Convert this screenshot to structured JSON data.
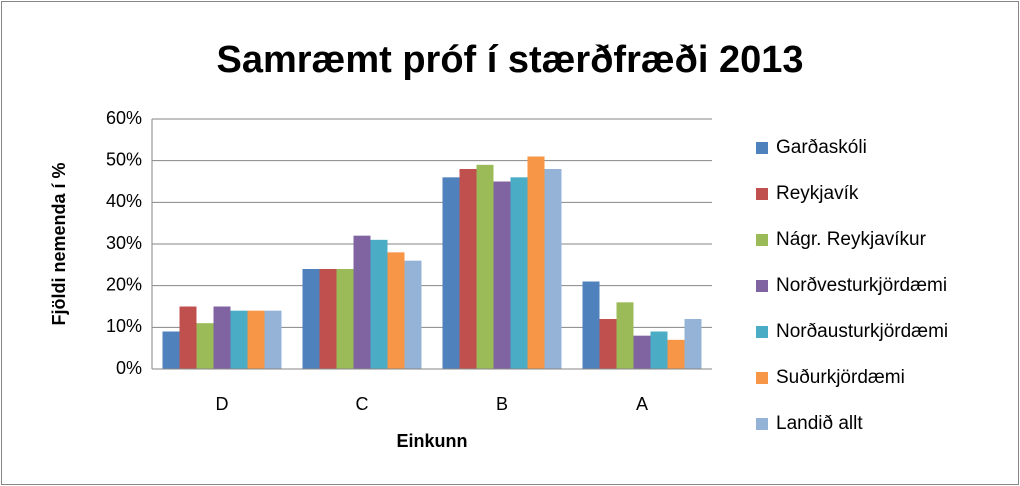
{
  "chart_data": {
    "type": "bar",
    "title": "Samræmt próf í stærðfræði 2013",
    "x_label": "Einkunn",
    "y_label": "Fjöldi nemenda í %",
    "categories": [
      "D",
      "C",
      "B",
      "A"
    ],
    "series": [
      {
        "name": "Garðaskóli",
        "color": "#4f81bd",
        "values": [
          9,
          24,
          46,
          21
        ]
      },
      {
        "name": "Reykjavík",
        "color": "#c0504d",
        "values": [
          15,
          24,
          48,
          12
        ]
      },
      {
        "name": "Nágr. Reykjavíkur",
        "color": "#9bbb59",
        "values": [
          11,
          24,
          49,
          16
        ]
      },
      {
        "name": "Norðvesturkjördæmi",
        "color": "#8064a2",
        "values": [
          15,
          32,
          45,
          8
        ]
      },
      {
        "name": "Norðausturkjördæmi",
        "color": "#4bacc6",
        "values": [
          14,
          31,
          46,
          9
        ]
      },
      {
        "name": "Suðurkjördæmi",
        "color": "#f79646",
        "values": [
          14,
          28,
          51,
          7
        ]
      },
      {
        "name": "Landið allt",
        "color": "#95b3d7",
        "values": [
          14,
          26,
          48,
          12
        ]
      }
    ],
    "ylim": [
      0,
      60
    ],
    "yticks": [
      {
        "value": 0,
        "label": "0%"
      },
      {
        "value": 10,
        "label": "10%"
      },
      {
        "value": 20,
        "label": "20%"
      },
      {
        "value": 30,
        "label": "30%"
      },
      {
        "value": 40,
        "label": "40%"
      },
      {
        "value": 50,
        "label": "50%"
      },
      {
        "value": 60,
        "label": "60%"
      }
    ],
    "grid": true,
    "legend": "right"
  }
}
